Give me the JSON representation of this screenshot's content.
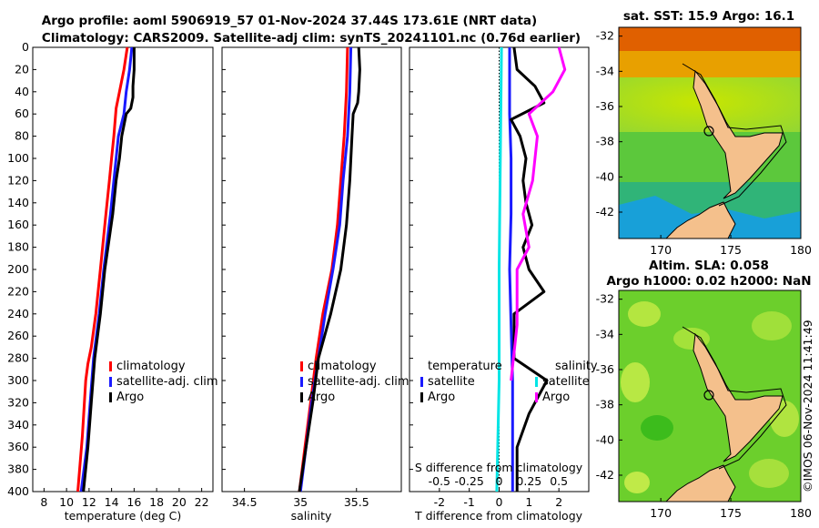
{
  "header": {
    "line1": "Argo profile: aoml 5906919_57 01-Nov-2024 37.44S 173.61E (NRT data)",
    "line2": "Climatology: CARS2009. Satellite-adj clim: synTS_20241101.nc (0.76d earlier)"
  },
  "watermark": "©IMOS 06-Nov-2024 11:41:49",
  "colors": {
    "red": "#ff0000",
    "blue": "#1a1aff",
    "black": "#000000",
    "cyan": "#00e5e5",
    "magenta": "#ff00ff"
  },
  "chart_data": [
    {
      "type": "line",
      "name": "temperature-profile",
      "xlabel": "temperature (deg C)",
      "ylabel": "",
      "xlim": [
        7,
        23
      ],
      "ylim": [
        400,
        0
      ],
      "xticks": [
        "8",
        "10",
        "12",
        "14",
        "16",
        "18",
        "20",
        "22"
      ],
      "yticks": [
        "0",
        "20",
        "40",
        "60",
        "80",
        "100",
        "120",
        "140",
        "160",
        "180",
        "200",
        "220",
        "240",
        "260",
        "280",
        "300",
        "320",
        "340",
        "360",
        "380",
        "400"
      ],
      "legend": [
        {
          "label": "climatology",
          "color": "red"
        },
        {
          "label": "satellite-adj. clim",
          "color": "blue"
        },
        {
          "label": "Argo",
          "color": "black"
        }
      ],
      "series": [
        {
          "name": "climatology",
          "color": "red",
          "depth": [
            0,
            20,
            40,
            55,
            80,
            100,
            120,
            150,
            200,
            240,
            270,
            285,
            300,
            350,
            400
          ],
          "values": [
            15.4,
            15.1,
            14.7,
            14.4,
            14.2,
            14.0,
            13.8,
            13.5,
            13.0,
            12.6,
            12.2,
            11.9,
            11.7,
            11.4,
            11.0
          ]
        },
        {
          "name": "satellite-adj. clim",
          "color": "blue",
          "depth": [
            0,
            20,
            40,
            60,
            80,
            100,
            120,
            150,
            200,
            240,
            280,
            320,
            360,
            400
          ],
          "values": [
            15.8,
            15.6,
            15.3,
            15.1,
            14.6,
            14.4,
            14.2,
            13.9,
            13.3,
            12.9,
            12.4,
            12.1,
            11.8,
            11.3
          ]
        },
        {
          "name": "Argo",
          "color": "black",
          "depth": [
            0,
            20,
            35,
            45,
            55,
            60,
            80,
            100,
            120,
            150,
            200,
            240,
            280,
            320,
            360,
            400
          ],
          "values": [
            16.0,
            16.0,
            15.9,
            15.9,
            15.7,
            15.3,
            14.9,
            14.7,
            14.4,
            14.1,
            13.4,
            13.0,
            12.5,
            12.2,
            11.9,
            11.5
          ]
        }
      ]
    },
    {
      "type": "line",
      "name": "salinity-profile",
      "xlabel": "salinity",
      "xlim": [
        34.3,
        35.9
      ],
      "ylim": [
        400,
        0
      ],
      "xticks": [
        "34.5",
        "35",
        "35.5"
      ],
      "legend": [
        {
          "label": "climatology",
          "color": "red"
        },
        {
          "label": "satellite-adj. clim",
          "color": "blue"
        },
        {
          "label": "Argo",
          "color": "black"
        }
      ],
      "series": [
        {
          "name": "climatology",
          "color": "red",
          "depth": [
            0,
            40,
            80,
            120,
            160,
            200,
            240,
            280,
            320,
            360,
            400
          ],
          "values": [
            35.42,
            35.41,
            35.39,
            35.36,
            35.33,
            35.28,
            35.2,
            35.14,
            35.09,
            35.04,
            34.99
          ]
        },
        {
          "name": "satellite-adj. clim",
          "color": "blue",
          "depth": [
            0,
            40,
            80,
            120,
            160,
            200,
            240,
            280,
            320,
            360,
            400
          ],
          "values": [
            35.45,
            35.44,
            35.42,
            35.38,
            35.35,
            35.29,
            35.22,
            35.16,
            35.1,
            35.05,
            35.0
          ]
        },
        {
          "name": "Argo",
          "color": "black",
          "depth": [
            0,
            20,
            40,
            50,
            60,
            80,
            100,
            120,
            160,
            200,
            240,
            280,
            320,
            360,
            400
          ],
          "values": [
            35.52,
            35.53,
            35.52,
            35.51,
            35.47,
            35.46,
            35.45,
            35.44,
            35.41,
            35.36,
            35.27,
            35.16,
            35.11,
            35.05,
            34.99
          ]
        }
      ]
    },
    {
      "type": "line",
      "name": "difference-profile",
      "xlabel": "T difference from climatology",
      "x2label": "S difference from climatology",
      "xlim": [
        -3,
        3
      ],
      "ylim": [
        400,
        0
      ],
      "xticks": [
        "-2",
        "-1",
        "0",
        "1",
        "2"
      ],
      "x2ticks": [
        "-0.5",
        "-0.25",
        "0",
        "0.25",
        "0.5"
      ],
      "legend": [
        {
          "label": "temperature",
          "color": ""
        },
        {
          "label": "satellite",
          "color": "blue"
        },
        {
          "label": "Argo",
          "color": "black"
        },
        {
          "label": "salinity",
          "color": ""
        },
        {
          "label": "satellite",
          "color": "cyan"
        },
        {
          "label": "Argo",
          "color": "magenta"
        }
      ],
      "series": [
        {
          "name": "T satellite",
          "color": "blue",
          "depth": [
            0,
            60,
            100,
            150,
            200,
            250,
            300,
            350,
            400
          ],
          "values": [
            0.35,
            0.35,
            0.4,
            0.4,
            0.35,
            0.4,
            0.45,
            0.45,
            0.45
          ]
        },
        {
          "name": "T Argo",
          "color": "black",
          "depth": [
            0,
            20,
            35,
            50,
            65,
            80,
            100,
            120,
            140,
            160,
            180,
            200,
            220,
            240,
            260,
            280,
            300,
            330,
            360,
            400
          ],
          "values": [
            0.5,
            0.6,
            1.2,
            1.5,
            0.4,
            0.7,
            0.9,
            0.8,
            0.9,
            1.1,
            0.8,
            1.0,
            1.5,
            0.5,
            0.5,
            0.5,
            1.6,
            1.0,
            0.6,
            0.6
          ]
        },
        {
          "name": "S satellite",
          "color": "cyan",
          "depth": [
            0,
            100,
            200,
            300,
            400
          ],
          "values": [
            0.02,
            0.01,
            0.0,
            0.0,
            -0.02
          ]
        },
        {
          "name": "S Argo",
          "color": "magenta",
          "depth": [
            0,
            20,
            40,
            60,
            80,
            100,
            120,
            150,
            180,
            200,
            250,
            300
          ],
          "values": [
            0.5,
            0.55,
            0.45,
            0.25,
            0.32,
            0.3,
            0.28,
            0.2,
            0.25,
            0.15,
            0.15,
            0.1
          ]
        }
      ]
    },
    {
      "type": "heatmap",
      "name": "sat-sst-map",
      "title": "sat. SST: 15.9 Argo: 16.1",
      "xlim": [
        167,
        180
      ],
      "ylim": [
        -43.5,
        -31.5
      ],
      "xticks": [
        "170",
        "175",
        "180"
      ],
      "yticks": [
        "-32",
        "-34",
        "-36",
        "-38",
        "-40",
        "-42"
      ],
      "marker": {
        "lon": 173.61,
        "lat": -37.44
      }
    },
    {
      "type": "heatmap",
      "name": "altimetry-map",
      "title": "Altim. SLA: 0.058",
      "subtitle": "Argo h1000: 0.02 h2000: NaN",
      "xlim": [
        167,
        180
      ],
      "ylim": [
        -43.5,
        -31.5
      ],
      "xticks": [
        "170",
        "175",
        "180"
      ],
      "yticks": [
        "-32",
        "-34",
        "-36",
        "-38",
        "-40",
        "-42"
      ],
      "marker": {
        "lon": 173.61,
        "lat": -37.44
      }
    }
  ]
}
